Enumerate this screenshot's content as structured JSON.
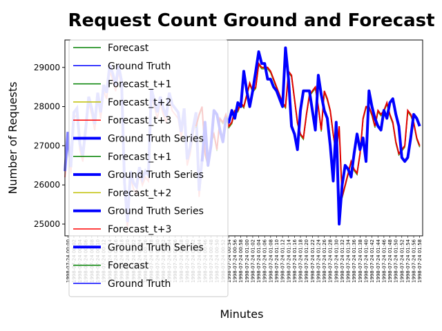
{
  "chart_data": {
    "type": "line",
    "title": "Request Count Ground and Forecast",
    "xlabel": "Minutes",
    "ylabel": "Number of Requests",
    "y_ticks": [
      25000,
      26000,
      27000,
      28000,
      29000
    ],
    "ylim": [
      24700,
      29700
    ],
    "xlim": [
      0,
      120
    ],
    "x_tick_labels": [
      "1998-07-24 00:00",
      "1998-07-24 00:02",
      "1998-07-24 00:04",
      "1998-07-24 00:06",
      "1998-07-24 00:08",
      "1998-07-24 00:10",
      "1998-07-24 00:12",
      "1998-07-24 00:14",
      "1998-07-24 00:16",
      "1998-07-24 00:18",
      "1998-07-24 00:20",
      "1998-07-24 00:22",
      "1998-07-24 00:24",
      "1998-07-24 00:26",
      "1998-07-24 00:28",
      "1998-07-24 00:30",
      "1998-07-24 00:32",
      "1998-07-24 00:34",
      "1998-07-24 00:36",
      "1998-07-24 00:38",
      "1998-07-24 00:40",
      "1998-07-24 00:42",
      "1998-07-24 00:44",
      "1998-07-24 00:46",
      "1998-07-24 00:48",
      "1998-07-24 00:50",
      "1998-07-24 00:52",
      "1998-07-24 00:54",
      "1998-07-24 00:56",
      "1998-07-24 00:58",
      "1998-07-24 01:00",
      "1998-07-24 01:02",
      "1998-07-24 01:04",
      "1998-07-24 01:06",
      "1998-07-24 01:08",
      "1998-07-24 01:10",
      "1998-07-24 01:12",
      "1998-07-24 01:14",
      "1998-07-24 01:16",
      "1998-07-24 01:18",
      "1998-07-24 01:20",
      "1998-07-24 01:22",
      "1998-07-24 01:24",
      "1998-07-24 01:26",
      "1998-07-24 01:28",
      "1998-07-24 01:30",
      "1998-07-24 01:32",
      "1998-07-24 01:34",
      "1998-07-24 01:36",
      "1998-07-24 01:38",
      "1998-07-24 01:40",
      "1998-07-24 01:42",
      "1998-07-24 01:44",
      "1998-07-24 01:46",
      "1998-07-24 01:48",
      "1998-07-24 01:50",
      "1998-07-24 01:52",
      "1998-07-24 01:54",
      "1998-07-24 01:56",
      "1998-07-24 01:58"
    ],
    "ground_truth_x": [
      0,
      1,
      2,
      3,
      4,
      5,
      6,
      7,
      8,
      9,
      10,
      11,
      12,
      13,
      14,
      15,
      16,
      17,
      18,
      19,
      20,
      21,
      22,
      23,
      24,
      25,
      26,
      27,
      28,
      29,
      30,
      31,
      32,
      33,
      34,
      35,
      36,
      37,
      38,
      39,
      40,
      41,
      42,
      43,
      44,
      45,
      46,
      47,
      48,
      49,
      50,
      51,
      52,
      53,
      54,
      55,
      56,
      57,
      58,
      59,
      60,
      61,
      62,
      63,
      64,
      65,
      66,
      67,
      68,
      69,
      70,
      71,
      72,
      73,
      74,
      75,
      76,
      77,
      78,
      79,
      80,
      81,
      82,
      83,
      84,
      85,
      86,
      87,
      88,
      89,
      90,
      91,
      92,
      93,
      94,
      95,
      96,
      97,
      98,
      99,
      100,
      101,
      102,
      103,
      104,
      105,
      106,
      107,
      108,
      109,
      110,
      111,
      112,
      113,
      114,
      115,
      116,
      117,
      118,
      119
    ],
    "ground_truth": [
      26300,
      27300,
      26400,
      27800,
      27900,
      27000,
      26700,
      27400,
      28200,
      27900,
      27500,
      28300,
      27800,
      28500,
      28300,
      29000,
      28800,
      28500,
      29000,
      28600,
      26000,
      25000,
      26300,
      26000,
      25900,
      26400,
      26100,
      26300,
      26200,
      28400,
      28100,
      27800,
      28200,
      27900,
      27700,
      28300,
      28000,
      27900,
      27800,
      27300,
      27900,
      26600,
      26900,
      27400,
      27800,
      25800,
      26600,
      27600,
      26500,
      27000,
      27900,
      27800,
      27400,
      27100,
      27700,
      27600,
      27900,
      27700,
      28100,
      28000,
      28900,
      28400,
      28000,
      28400,
      28900,
      29400,
      29100,
      29100,
      28700,
      28700,
      28500,
      28400,
      28200,
      28000,
      29500,
      28700,
      27500,
      27300,
      26900,
      27900,
      28400,
      28400,
      28400,
      27900,
      27400,
      28800,
      28300,
      27900,
      27700,
      27000,
      26100,
      27600,
      25000,
      26000,
      26500,
      26400,
      26200,
      26800,
      27300,
      26900,
      27200,
      26600,
      28400,
      28000,
      27700,
      27500,
      27400,
      27900,
      27700,
      28100,
      28200,
      27800,
      27500,
      26700,
      26600,
      26700,
      27200,
      27800,
      27700,
      27500
    ],
    "forecast_x": [
      44,
      45,
      46,
      47,
      48,
      49,
      50,
      51,
      52,
      53,
      54,
      55,
      56,
      57,
      58,
      59,
      60,
      61,
      62,
      63,
      64,
      65,
      66,
      67,
      68,
      69,
      70,
      71,
      72,
      73,
      74,
      75,
      76,
      77,
      78,
      79,
      80,
      81,
      82,
      83,
      84,
      85,
      86,
      87,
      88,
      89,
      90,
      91,
      92,
      93,
      94,
      95,
      96,
      97,
      98,
      99,
      100,
      101,
      102,
      103,
      104,
      105,
      106,
      107,
      108,
      109,
      110,
      111,
      112,
      113,
      114,
      115,
      116,
      117,
      118,
      119
    ],
    "forecast": [
      27500,
      27800,
      28000,
      26800,
      26500,
      27100,
      27300,
      26900,
      27700,
      27600,
      27800,
      27500,
      27600,
      27900,
      27900,
      28100,
      28000,
      28300,
      28600,
      28400,
      28500,
      29100,
      29000,
      29000,
      29000,
      28900,
      28700,
      28500,
      28300,
      28100,
      28000,
      28900,
      28800,
      28200,
      27600,
      27300,
      27200,
      27800,
      28300,
      28400,
      28500,
      28000,
      27400,
      28400,
      28200,
      27900,
      27300,
      26800,
      27500,
      25700,
      26000,
      26300,
      26600,
      26400,
      26300,
      26800,
      27700,
      28000,
      28000,
      27800,
      27500,
      27900,
      27800,
      27900,
      28100,
      27800,
      27600,
      27100,
      26800,
      26900,
      27000,
      27900,
      27800,
      27600,
      27200,
      27000
    ],
    "series": [
      {
        "name": "Forecast",
        "color": "#008000"
      },
      {
        "name": "Ground Truth",
        "color": "#0000ff"
      },
      {
        "name": "Forecast_t+1",
        "color": "#008000"
      },
      {
        "name": "Forecast_t+2",
        "color": "#bfbf00"
      },
      {
        "name": "Forecast_t+3",
        "color": "#ff0000"
      },
      {
        "name": "Ground Truth Series",
        "color": "#0000ff"
      }
    ],
    "legend": [
      {
        "label": "Forecast",
        "color": "#008000",
        "width": 1.5
      },
      {
        "label": "Ground Truth",
        "color": "#0000ff",
        "width": 1.5
      },
      {
        "label": "Forecast_t+1",
        "color": "#008000",
        "width": 1.5
      },
      {
        "label": "Forecast_t+2",
        "color": "#bfbf00",
        "width": 1.5
      },
      {
        "label": "Forecast_t+3",
        "color": "#ff0000",
        "width": 1.5
      },
      {
        "label": "Ground Truth Series",
        "color": "#0000ff",
        "width": 4
      },
      {
        "label": "Forecast_t+1",
        "color": "#008000",
        "width": 1.5
      },
      {
        "label": "Ground Truth Series",
        "color": "#0000ff",
        "width": 4
      },
      {
        "label": "Forecast_t+2",
        "color": "#bfbf00",
        "width": 1.5
      },
      {
        "label": "Ground Truth Series",
        "color": "#0000ff",
        "width": 4
      },
      {
        "label": "Forecast_t+3",
        "color": "#ff0000",
        "width": 1.5
      },
      {
        "label": "Ground Truth Series",
        "color": "#0000ff",
        "width": 4
      },
      {
        "label": "Forecast",
        "color": "#008000",
        "width": 1.5
      },
      {
        "label": "Ground Truth",
        "color": "#0000ff",
        "width": 1.5
      }
    ],
    "legend_position": "upper-left"
  }
}
